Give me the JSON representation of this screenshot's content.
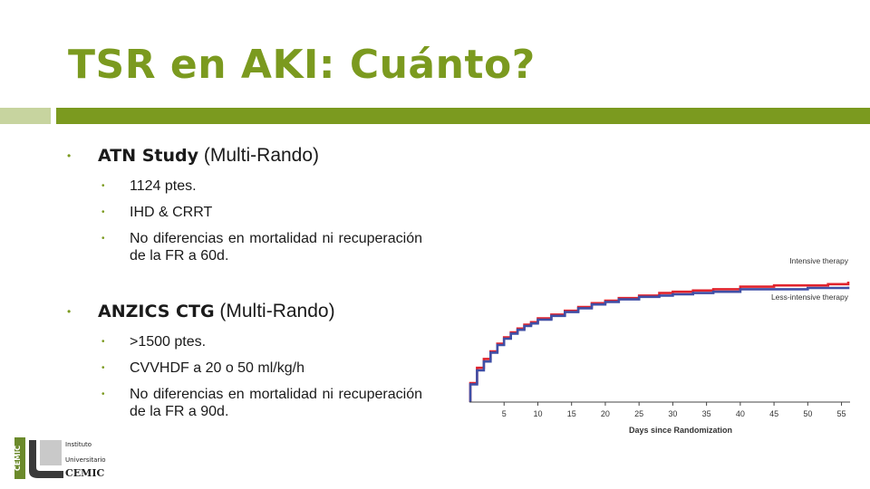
{
  "title": "TSR en AKI: Cuánto?",
  "sections": [
    {
      "heading_bold": "ATN Study",
      "heading_rest": " (Multi-Rando)",
      "items": [
        "1124 ptes.",
        "IHD & CRRT",
        "No diferencias en mortalidad ni recuperación de la FR a 60d."
      ]
    },
    {
      "heading_bold": "ANZICS CTG",
      "heading_rest": " (Multi-Rando)",
      "items": [
        ">1500 ptes.",
        "CVVHDF a 20 o 50 ml/kg/h",
        "No diferencias en mortalidad ni recuperación de la FR a 90d."
      ]
    }
  ],
  "chart_data": {
    "type": "line",
    "xlabel": "Days since Randomization",
    "ylabel": "",
    "xlim": [
      0,
      56
    ],
    "ylim": [
      0,
      1
    ],
    "x_ticks": [
      5,
      10,
      15,
      20,
      25,
      30,
      35,
      40,
      45,
      50,
      55
    ],
    "series": [
      {
        "name": "Intensive therapy",
        "color": "#e0232d",
        "x": [
          0,
          1,
          2,
          3,
          4,
          5,
          6,
          7,
          8,
          9,
          10,
          12,
          14,
          16,
          18,
          20,
          22,
          25,
          28,
          30,
          33,
          36,
          40,
          45,
          50,
          53,
          56
        ],
        "y": [
          0.15,
          0.27,
          0.34,
          0.4,
          0.46,
          0.51,
          0.55,
          0.58,
          0.61,
          0.63,
          0.66,
          0.69,
          0.72,
          0.75,
          0.78,
          0.8,
          0.82,
          0.84,
          0.86,
          0.87,
          0.88,
          0.89,
          0.91,
          0.92,
          0.92,
          0.93,
          0.95
        ]
      },
      {
        "name": "Less-intensive therapy",
        "color": "#3f4fa6",
        "x": [
          0,
          1,
          2,
          3,
          4,
          5,
          6,
          7,
          8,
          9,
          10,
          12,
          14,
          16,
          18,
          20,
          22,
          25,
          28,
          30,
          33,
          36,
          40,
          45,
          50,
          53,
          56
        ],
        "y": [
          0.14,
          0.25,
          0.32,
          0.39,
          0.45,
          0.5,
          0.54,
          0.57,
          0.6,
          0.62,
          0.65,
          0.68,
          0.71,
          0.74,
          0.77,
          0.79,
          0.81,
          0.83,
          0.84,
          0.85,
          0.86,
          0.87,
          0.89,
          0.89,
          0.9,
          0.9,
          0.91
        ]
      }
    ]
  },
  "logo": {
    "line1": "Instituto",
    "line2": "Universitario",
    "line3": "CEMIC",
    "vertical": "CEMIC"
  }
}
